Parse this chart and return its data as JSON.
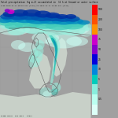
{
  "title_line1": "Total precipitation (kg m-2) accumulated in  12 h at Ground or water surface",
  "title_line2": "From 2013-11-17 00:00 UTC (t+12) to 2013-11-17 12:00 UTC (t+24)",
  "footer": "ECMWF Model  Feb 2013   Italy",
  "figsize": [
    1.5,
    1.5
  ],
  "dpi": 100,
  "map_facecolor": "#dce8dc",
  "sea_color": "#c8d4c8",
  "fig_bg": "#a0a0a0",
  "cb_colors": [
    "#ff0000",
    "#ff5000",
    "#ff9000",
    "#cc00cc",
    "#8800cc",
    "#0000dd",
    "#0088dd",
    "#00ccbb",
    "#88eedd",
    "#bbfff0",
    "#ddfff8"
  ],
  "cb_labels": [
    "500",
    "200",
    "100",
    "75",
    "50",
    "25",
    "10",
    "5",
    "1",
    "0.5",
    ""
  ],
  "precip_colors": {
    "dark_blue": "#0030a0",
    "med_blue": "#0055b0",
    "blue_green": "#0088c0",
    "teal": "#00aaa0",
    "light_teal": "#44ccbb",
    "v_light_cyan": "#99eedd",
    "extra_light": "#ccfff5",
    "magenta": "#cc00cc",
    "purple": "#8800cc"
  }
}
